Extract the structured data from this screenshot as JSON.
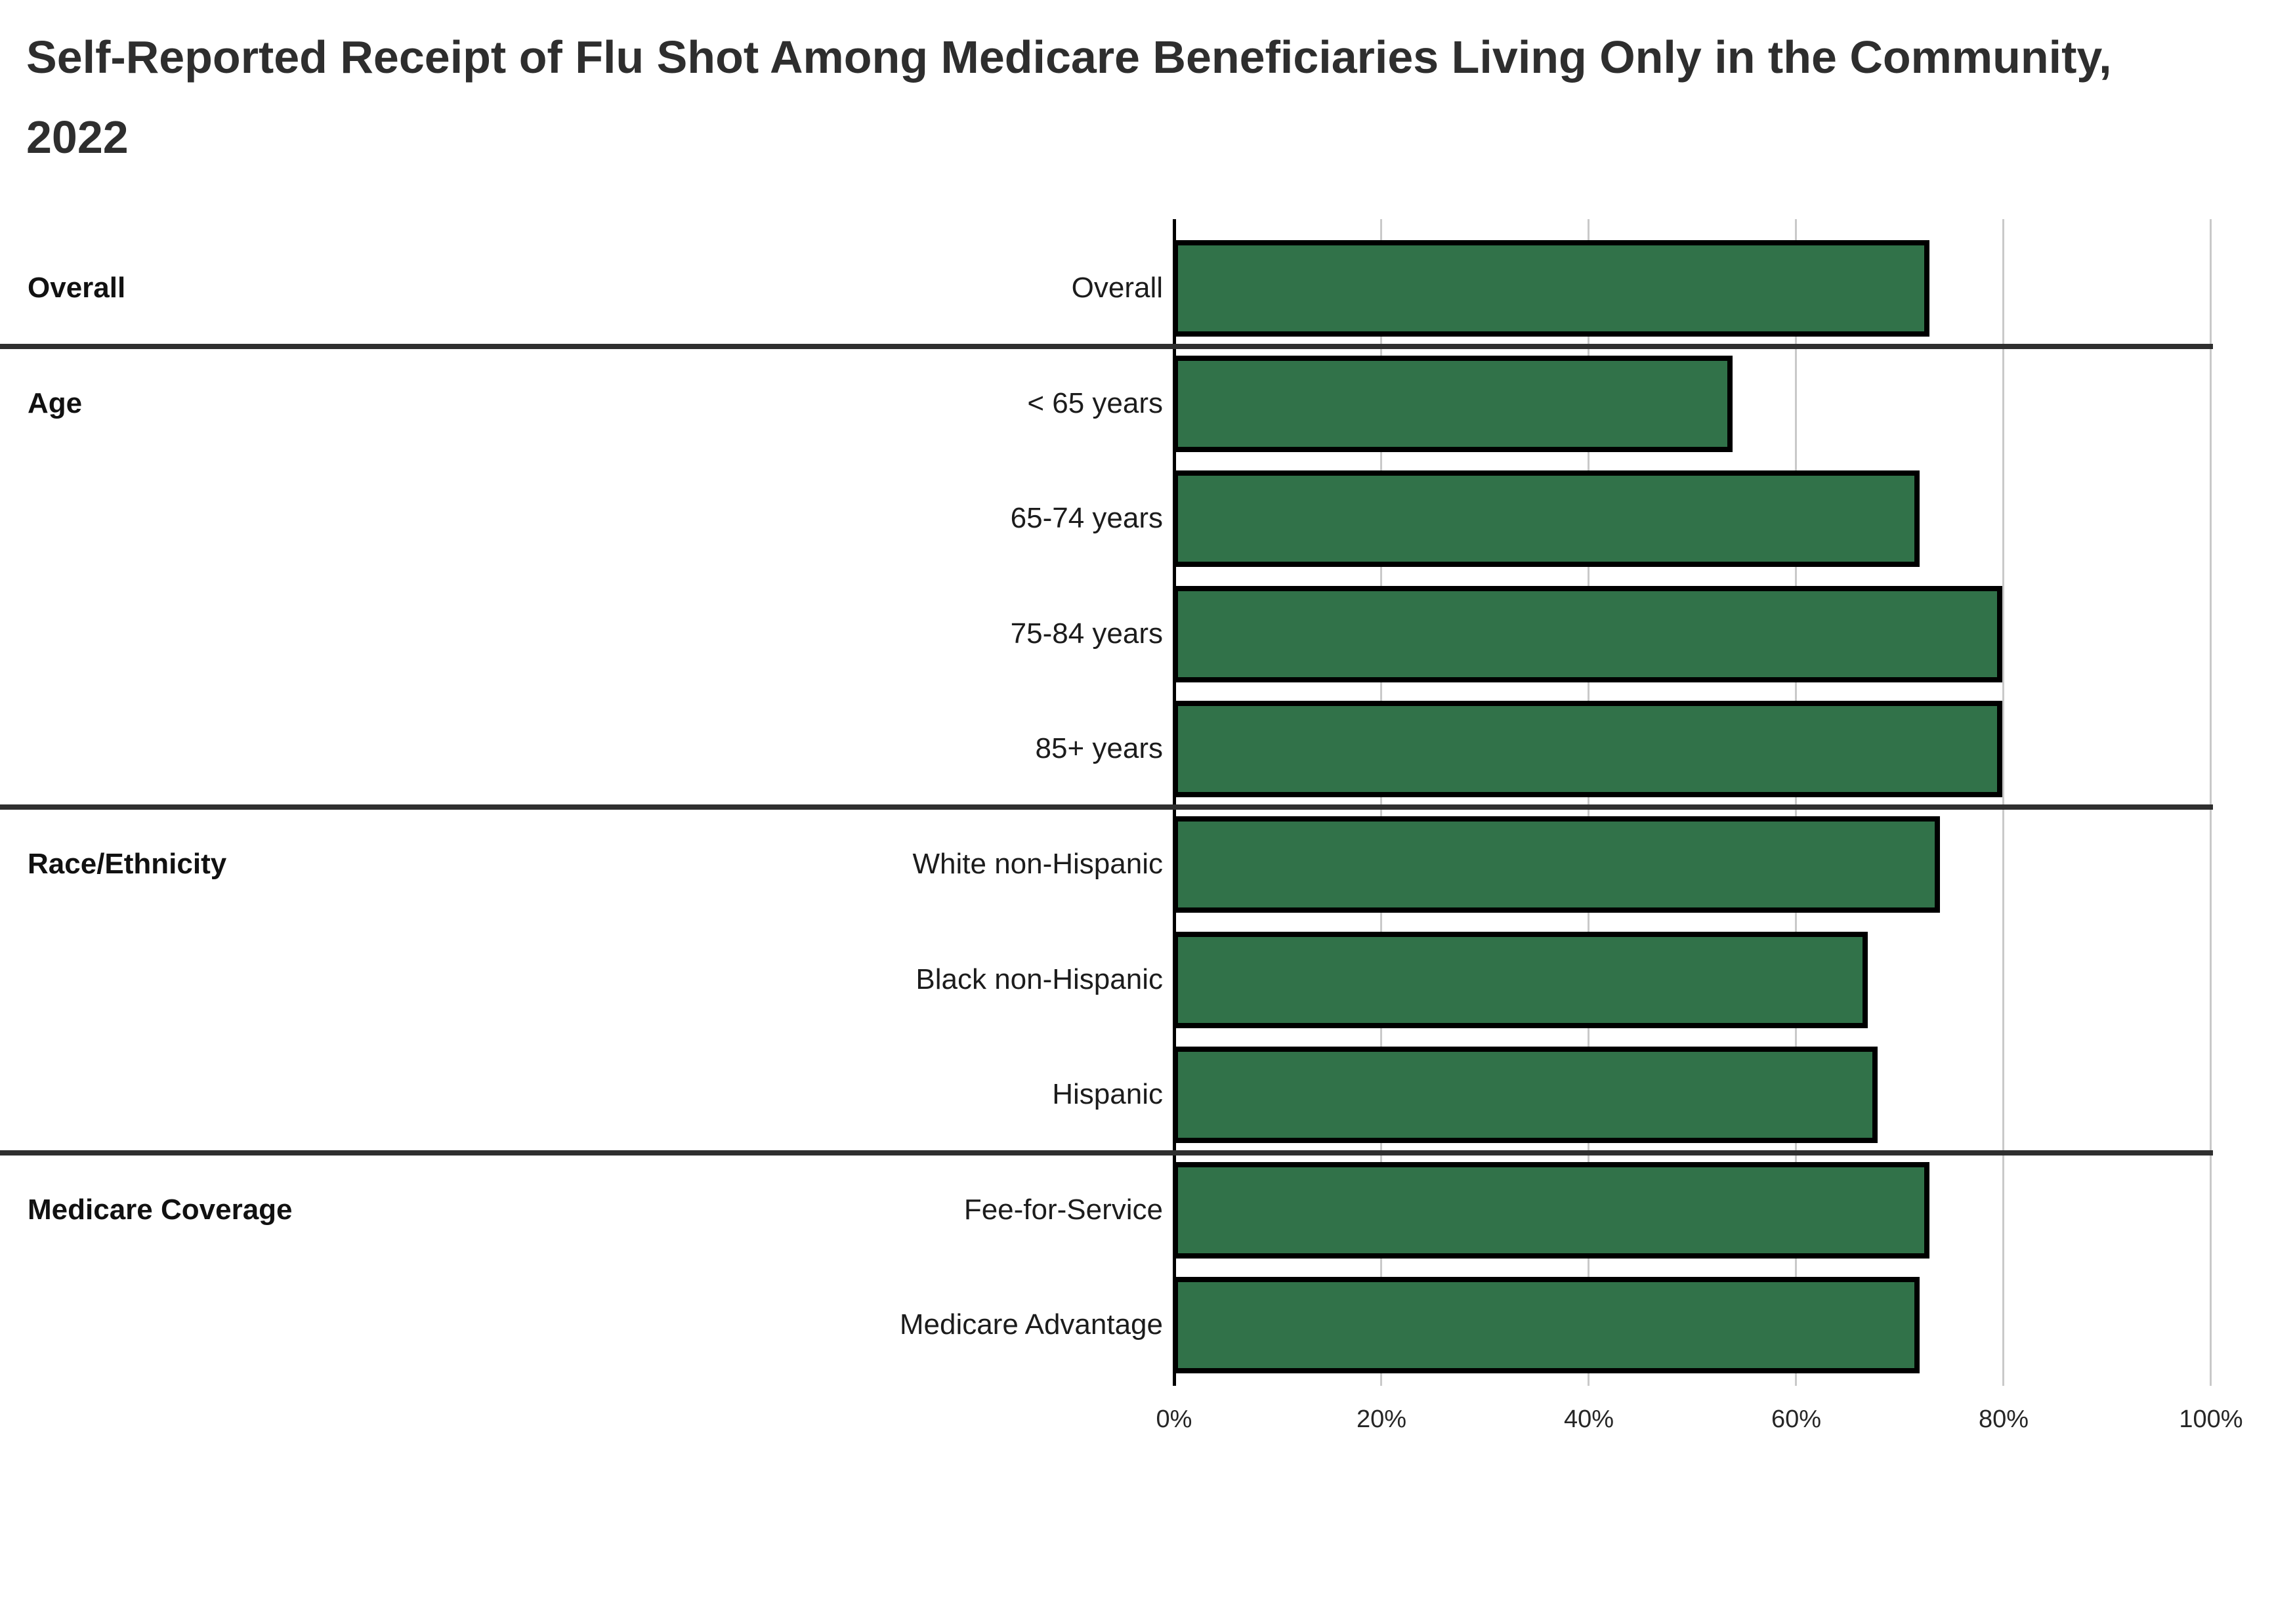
{
  "page": {
    "title": "Self-Reported Receipt of Flu Shot Among Medicare Beneficiaries Living Only in the Community, 2022"
  },
  "chart_data": {
    "type": "bar",
    "orientation": "horizontal",
    "title": "Self-Reported Receipt of Flu Shot Among Medicare Beneficiaries Living Only in the Community, 2022",
    "value_unit": "%",
    "xlabel": "",
    "ylabel": "",
    "xlim": [
      0,
      100
    ],
    "x_tick_labels": [
      "0%",
      "20%",
      "40%",
      "60%",
      "80%",
      "100%"
    ],
    "grid": true,
    "legend": false,
    "bar_color": "#317249",
    "bar_border_color": "#000000",
    "groups": [
      {
        "group": "Overall",
        "items": [
          {
            "label": "Overall",
            "value": 73
          }
        ]
      },
      {
        "group": "Age",
        "items": [
          {
            "label": "< 65 years",
            "value": 54
          },
          {
            "label": "65-74 years",
            "value": 72
          },
          {
            "label": "75-84 years",
            "value": 80
          },
          {
            "label": "85+ years",
            "value": 80
          }
        ]
      },
      {
        "group": "Race/Ethnicity",
        "items": [
          {
            "label": "White non-Hispanic",
            "value": 74
          },
          {
            "label": "Black non-Hispanic",
            "value": 67
          },
          {
            "label": "Hispanic",
            "value": 68
          }
        ]
      },
      {
        "group": "Medicare Coverage",
        "items": [
          {
            "label": "Fee-for-Service",
            "value": 73
          },
          {
            "label": "Medicare Advantage",
            "value": 72
          }
        ]
      }
    ]
  }
}
